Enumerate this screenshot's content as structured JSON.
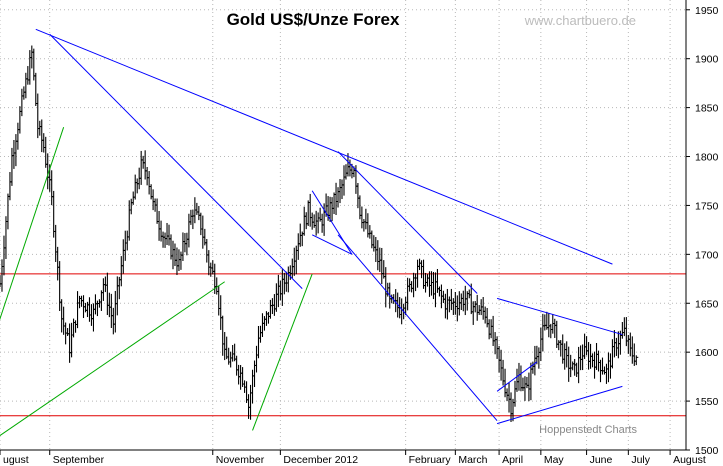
{
  "chart_data": {
    "type": "ohlc",
    "title": "Gold US$/Unze Forex",
    "watermark": "www.chartbuero.de",
    "source": "Hoppenstedt Charts",
    "y_ticks": [
      1500,
      1550,
      1600,
      1650,
      1700,
      1750,
      1800,
      1850,
      1900,
      1950
    ],
    "ylim": [
      1500,
      1960
    ],
    "x_labels": [
      {
        "label": "ugust",
        "x": 0
      },
      {
        "label": "September",
        "x": 25
      },
      {
        "label": "November",
        "x": 107
      },
      {
        "label": "December 2012",
        "x": 141
      },
      {
        "label": "February",
        "x": 204
      },
      {
        "label": "March",
        "x": 229
      },
      {
        "label": "April",
        "x": 251
      },
      {
        "label": "May",
        "x": 272
      },
      {
        "label": "June",
        "x": 295
      },
      {
        "label": "July",
        "x": 316
      },
      {
        "label": "August",
        "x": 337
      }
    ],
    "xlim": [
      0,
      345
    ],
    "horizontal_levels": [
      1680,
      1535
    ],
    "anchor_bars": [
      [
        0,
        1670
      ],
      [
        6,
        1800
      ],
      [
        12,
        1865
      ],
      [
        16,
        1905
      ],
      [
        19,
        1830
      ],
      [
        22,
        1810
      ],
      [
        26,
        1755
      ],
      [
        31,
        1635
      ],
      [
        35,
        1605
      ],
      [
        40,
        1655
      ],
      [
        47,
        1640
      ],
      [
        52,
        1670
      ],
      [
        57,
        1630
      ],
      [
        60,
        1675
      ],
      [
        66,
        1750
      ],
      [
        71,
        1790
      ],
      [
        74,
        1785
      ],
      [
        77,
        1750
      ],
      [
        82,
        1720
      ],
      [
        90,
        1690
      ],
      [
        97,
        1745
      ],
      [
        101,
        1730
      ],
      [
        105,
        1690
      ],
      [
        109,
        1670
      ],
      [
        113,
        1595
      ],
      [
        118,
        1590
      ],
      [
        123,
        1570
      ],
      [
        125,
        1545
      ],
      [
        130,
        1615
      ],
      [
        135,
        1640
      ],
      [
        140,
        1660
      ],
      [
        145,
        1680
      ],
      [
        150,
        1715
      ],
      [
        155,
        1745
      ],
      [
        160,
        1730
      ],
      [
        165,
        1745
      ],
      [
        170,
        1760
      ],
      [
        175,
        1785
      ],
      [
        178,
        1790
      ],
      [
        181,
        1745
      ],
      [
        186,
        1715
      ],
      [
        191,
        1690
      ],
      [
        196,
        1650
      ],
      [
        201,
        1645
      ],
      [
        206,
        1665
      ],
      [
        210,
        1690
      ],
      [
        214,
        1670
      ],
      [
        219,
        1665
      ],
      [
        224,
        1650
      ],
      [
        229,
        1650
      ],
      [
        234,
        1655
      ],
      [
        239,
        1645
      ],
      [
        244,
        1640
      ],
      [
        249,
        1605
      ],
      [
        254,
        1565
      ],
      [
        257,
        1545
      ],
      [
        261,
        1575
      ],
      [
        265,
        1560
      ],
      [
        269,
        1595
      ],
      [
        273,
        1620
      ],
      [
        277,
        1630
      ],
      [
        281,
        1610
      ],
      [
        285,
        1590
      ],
      [
        289,
        1580
      ],
      [
        293,
        1600
      ],
      [
        297,
        1595
      ],
      [
        301,
        1590
      ],
      [
        305,
        1580
      ],
      [
        310,
        1610
      ],
      [
        314,
        1620
      ],
      [
        317,
        1600
      ],
      [
        320,
        1595
      ]
    ],
    "trendlines": [
      {
        "color": "#0000ff",
        "points": [
          [
            18,
            1930
          ],
          [
            308,
            1690
          ]
        ]
      },
      {
        "color": "#0000ff",
        "points": [
          [
            25,
            1925
          ],
          [
            152,
            1665
          ]
        ]
      },
      {
        "color": "#0000ff",
        "points": [
          [
            170,
            1805
          ],
          [
            240,
            1660
          ]
        ]
      },
      {
        "color": "#0000ff",
        "points": [
          [
            170,
            1720
          ],
          [
            250,
            1530
          ]
        ]
      },
      {
        "color": "#0000ff",
        "points": [
          [
            250,
            1560
          ],
          [
            270,
            1590
          ]
        ]
      },
      {
        "color": "#0000ff",
        "points": [
          [
            250,
            1655
          ],
          [
            313,
            1618
          ]
        ]
      },
      {
        "color": "#0000ff",
        "points": [
          [
            250,
            1527
          ],
          [
            313,
            1565
          ]
        ]
      },
      {
        "color": "#0000ff",
        "points": [
          [
            157,
            1765
          ],
          [
            177,
            1700
          ]
        ]
      },
      {
        "color": "#0000ff",
        "points": [
          [
            157,
            1720
          ],
          [
            177,
            1700
          ]
        ]
      },
      {
        "color": "#00aa00",
        "points": [
          [
            -2,
            1622
          ],
          [
            32,
            1830
          ]
        ]
      },
      {
        "color": "#00aa00",
        "points": [
          [
            -2,
            1512
          ],
          [
            113,
            1672
          ]
        ]
      },
      {
        "color": "#00aa00",
        "points": [
          [
            127,
            1520
          ],
          [
            157,
            1680
          ]
        ]
      }
    ]
  }
}
